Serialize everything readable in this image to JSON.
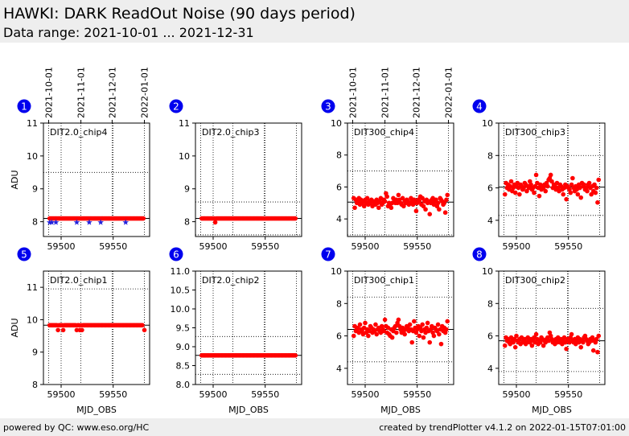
{
  "header": {
    "title": "HAWKI: DARK ReadOut Noise (90 days period)",
    "subtitle": "Data range: 2021-10-01 ... 2021-12-31"
  },
  "footer": {
    "left": "powered by QC: www.eso.org/HC",
    "right": "created by trendPlotter v4.1.2 on 2022-01-15T07:01:00"
  },
  "colors": {
    "marker": "#ff0000",
    "star": "#2222dd",
    "badge": "#0000ee",
    "refline": "#000000"
  },
  "date_axis": {
    "labels": [
      "2021-10-01",
      "2021-11-01",
      "2021-12-01",
      "2022-01-01"
    ],
    "mjd": [
      59488,
      59519,
      59549,
      59580
    ]
  },
  "chart_data": [
    {
      "number": "1",
      "type": "scatter",
      "label": "DIT2.0_chip4",
      "xlim": [
        59483,
        59585
      ],
      "ylim": [
        7.55,
        11
      ],
      "xticks": [
        59500,
        59550
      ],
      "yticks": [
        8,
        9,
        10,
        11
      ],
      "ylabel": "ADU",
      "xlabel": "",
      "grid": true,
      "top_dates": true,
      "ref_line": 8.1,
      "hlines": [
        9.5
      ],
      "x_start": 59489,
      "x_step": 1.0,
      "n_points": 91,
      "base_value": 8.1,
      "outliers": [],
      "stars": [
        [
          59489,
          7.98
        ],
        [
          59491,
          7.98
        ],
        [
          59495,
          7.98
        ],
        [
          59515,
          7.98
        ],
        [
          59527,
          7.98
        ],
        [
          59538,
          7.98
        ],
        [
          59562,
          7.98
        ]
      ]
    },
    {
      "number": "2",
      "type": "scatter",
      "label": "DIT2.0_chip3",
      "xlim": [
        59483,
        59585
      ],
      "ylim": [
        7.55,
        11
      ],
      "xticks": [
        59500,
        59550
      ],
      "yticks": [
        8,
        9,
        10,
        11
      ],
      "ylabel": "",
      "xlabel": "",
      "grid": true,
      "top_dates": false,
      "ref_line": 8.1,
      "hlines": [
        8.6,
        7.6
      ],
      "x_start": 59489,
      "x_step": 1.0,
      "n_points": 91,
      "base_value": 8.1,
      "outliers": [
        [
          59502,
          7.98
        ]
      ],
      "stars": []
    },
    {
      "number": "3",
      "type": "scatter",
      "label": "DIT300_chip4",
      "xlim": [
        59483,
        59585
      ],
      "ylim": [
        2.9,
        10
      ],
      "xticks": [
        59500,
        59550
      ],
      "yticks": [
        4,
        6,
        8,
        10
      ],
      "ylabel": "",
      "xlabel": "",
      "grid": true,
      "top_dates": true,
      "ref_line": 5.05,
      "hlines": [
        7.0,
        3.0
      ],
      "values": [
        5.3,
        4.7,
        5.2,
        5.0,
        5.1,
        5.3,
        4.9,
        5.2,
        5.0,
        5.1,
        4.8,
        5.2,
        5.0,
        5.3,
        4.9,
        5.1,
        5.0,
        5.2,
        4.8,
        5.1,
        5.0,
        4.9,
        5.2,
        5.0,
        4.7,
        5.1,
        5.3,
        4.9,
        5.0,
        5.2,
        5.1,
        5.6,
        5.4,
        4.8,
        5.0,
        4.9,
        4.7,
        5.0,
        5.3,
        5.1,
        5.0,
        5.2,
        5.0,
        5.5,
        5.2,
        5.0,
        4.9,
        5.3,
        4.8,
        5.1,
        5.0,
        5.2,
        5.1,
        4.9,
        5.0,
        5.3,
        5.1,
        4.9,
        5.2,
        5.0,
        4.5,
        5.0,
        5.2,
        5.1,
        5.4,
        4.9,
        5.3,
        4.8,
        5.1,
        4.6,
        5.2,
        5.0,
        5.1,
        4.3,
        5.0,
        5.2,
        5.3,
        4.9,
        5.1,
        5.2,
        4.8,
        5.0,
        4.6,
        5.3,
        5.2,
        5.1,
        4.9,
        5.0,
        4.4,
        5.2,
        5.5
      ]
    },
    {
      "number": "4",
      "type": "scatter",
      "label": "DIT300_chip3",
      "xlim": [
        59483,
        59585
      ],
      "ylim": [
        3.0,
        10
      ],
      "xticks": [
        59500,
        59550
      ],
      "yticks": [
        4,
        6,
        8,
        10
      ],
      "ylabel": "",
      "xlabel": "",
      "grid": true,
      "top_dates": false,
      "ref_line": 6.05,
      "hlines": [
        8.0,
        4.3
      ],
      "values": [
        5.6,
        6.3,
        6.0,
        6.2,
        5.9,
        6.1,
        6.4,
        5.8,
        6.0,
        6.2,
        5.7,
        6.1,
        6.3,
        6.0,
        5.6,
        6.2,
        6.1,
        5.9,
        6.0,
        6.3,
        6.2,
        5.8,
        6.1,
        6.0,
        6.4,
        6.2,
        5.9,
        6.0,
        5.7,
        6.1,
        6.8,
        6.3,
        6.0,
        5.5,
        6.2,
        5.9,
        6.1,
        6.0,
        6.2,
        5.8,
        6.3,
        6.1,
        6.5,
        6.6,
        6.8,
        6.4,
        6.0,
        6.2,
        6.1,
        5.9,
        6.3,
        6.0,
        5.8,
        6.2,
        6.1,
        5.9,
        5.6,
        6.0,
        6.2,
        5.3,
        6.1,
        6.0,
        5.9,
        5.7,
        6.2,
        6.6,
        6.0,
        5.8,
        6.1,
        5.9,
        5.6,
        6.2,
        6.0,
        5.4,
        6.3,
        6.1,
        6.2,
        5.9,
        6.0,
        5.8,
        6.2,
        6.3,
        6.0,
        5.6,
        6.1,
        5.8,
        6.2,
        5.7,
        6.0,
        5.1,
        6.5
      ]
    },
    {
      "number": "5",
      "type": "scatter",
      "label": "DIT2.0_chip1",
      "xlim": [
        59483,
        59585
      ],
      "ylim": [
        8.0,
        11.5
      ],
      "xticks": [
        59500,
        59550
      ],
      "yticks": [
        8,
        9,
        10,
        11
      ],
      "ylabel": "ADU",
      "xlabel": "MJD_OBS",
      "grid": true,
      "top_dates": false,
      "ref_line": 9.83,
      "hlines": [
        10.95
      ],
      "x_start": 59489,
      "x_step": 1.0,
      "n_points": 91,
      "base_value": 9.83,
      "outliers": [
        [
          59497,
          9.68
        ],
        [
          59502,
          9.68
        ],
        [
          59515,
          9.68
        ],
        [
          59518,
          9.68
        ],
        [
          59520,
          9.68
        ],
        [
          59580,
          9.68
        ]
      ],
      "stars": []
    },
    {
      "number": "6",
      "type": "scatter",
      "label": "DIT2.0_chip2",
      "xlim": [
        59483,
        59585
      ],
      "ylim": [
        8.0,
        11.0
      ],
      "xticks": [
        59500,
        59550
      ],
      "yticks": [
        8.0,
        8.5,
        9.0,
        9.5,
        10.0,
        10.5,
        11.0
      ],
      "ylabel": "",
      "xlabel": "MJD_OBS",
      "grid": true,
      "top_dates": false,
      "ref_line": 8.77,
      "hlines": [
        9.27,
        8.27
      ],
      "x_start": 59489,
      "x_step": 1.0,
      "n_points": 91,
      "base_value": 8.77,
      "outliers": [],
      "stars": []
    },
    {
      "number": "7",
      "type": "scatter",
      "label": "DIT300_chip1",
      "xlim": [
        59483,
        59585
      ],
      "ylim": [
        3.0,
        10
      ],
      "xticks": [
        59500,
        59550
      ],
      "yticks": [
        4,
        6,
        8,
        10
      ],
      "ylabel": "",
      "xlabel": "MJD_OBS",
      "grid": true,
      "top_dates": false,
      "ref_line": 6.4,
      "hlines": [
        8.4,
        4.4
      ],
      "values": [
        6.0,
        6.6,
        6.3,
        6.4,
        6.5,
        6.2,
        6.7,
        6.4,
        6.3,
        6.1,
        6.5,
        6.8,
        6.2,
        6.4,
        6.0,
        6.3,
        6.6,
        6.5,
        6.2,
        6.4,
        6.3,
        6.7,
        6.1,
        6.4,
        6.5,
        6.3,
        6.2,
        6.6,
        6.4,
        6.3,
        7.0,
        6.6,
        6.2,
        6.5,
        6.1,
        6.0,
        6.4,
        5.9,
        6.3,
        6.5,
        6.6,
        6.2,
        6.8,
        7.0,
        6.6,
        6.4,
        6.2,
        6.5,
        6.3,
        6.1,
        6.4,
        6.6,
        6.5,
        6.3,
        6.7,
        6.4,
        5.6,
        6.3,
        6.9,
        6.5,
        6.2,
        6.4,
        6.6,
        6.0,
        6.5,
        6.3,
        6.7,
        5.9,
        6.4,
        6.2,
        6.5,
        6.8,
        6.3,
        5.6,
        6.4,
        6.6,
        6.2,
        6.0,
        6.5,
        6.4,
        6.3,
        6.7,
        6.1,
        6.4,
        5.5,
        6.6,
        6.3,
        6.5,
        6.2,
        6.4,
        6.9
      ]
    },
    {
      "number": "8",
      "type": "scatter",
      "label": "DIT300_chip2",
      "xlim": [
        59483,
        59585
      ],
      "ylim": [
        3.0,
        10
      ],
      "xticks": [
        59500,
        59550
      ],
      "yticks": [
        4,
        6,
        8,
        10
      ],
      "ylabel": "",
      "xlabel": "MJD_OBS",
      "grid": true,
      "top_dates": false,
      "ref_line": 5.7,
      "hlines": [
        7.7,
        3.8
      ],
      "values": [
        5.4,
        5.9,
        5.7,
        5.8,
        5.6,
        5.5,
        5.9,
        5.7,
        5.6,
        5.8,
        5.3,
        6.0,
        5.7,
        5.6,
        5.8,
        5.5,
        5.9,
        5.6,
        5.7,
        5.8,
        5.5,
        5.6,
        5.9,
        5.7,
        5.6,
        5.8,
        5.4,
        5.7,
        5.9,
        5.6,
        6.1,
        5.8,
        5.5,
        5.7,
        5.6,
        5.9,
        5.8,
        5.4,
        5.7,
        5.6,
        5.8,
        5.9,
        5.7,
        6.2,
        6.0,
        5.8,
        5.6,
        5.7,
        5.5,
        5.8,
        5.6,
        5.9,
        5.7,
        5.6,
        5.8,
        5.5,
        5.7,
        5.9,
        5.6,
        5.2,
        5.8,
        5.7,
        5.6,
        5.9,
        6.1,
        5.7,
        5.6,
        5.8,
        5.5,
        5.7,
        5.9,
        5.6,
        5.8,
        5.3,
        5.7,
        5.6,
        5.9,
        6.0,
        5.8,
        5.7,
        5.5,
        5.6,
        5.8,
        5.7,
        5.9,
        5.1,
        5.7,
        5.6,
        5.8,
        5.0,
        6.0
      ]
    }
  ]
}
